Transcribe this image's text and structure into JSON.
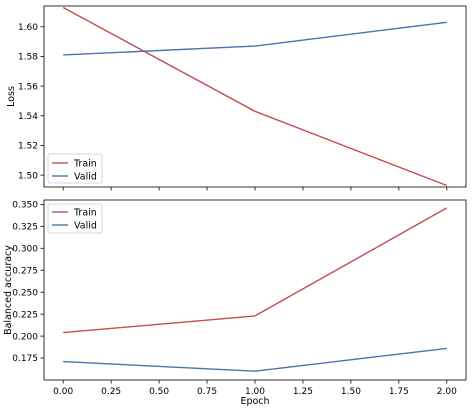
{
  "colors": {
    "train": "#c44e52",
    "valid": "#4c72b0"
  },
  "chart_data": [
    {
      "type": "line",
      "title": "",
      "xlabel": "",
      "ylabel": "Loss",
      "x": [
        0,
        1,
        2
      ],
      "series": [
        {
          "name": "Train",
          "values": [
            1.613,
            1.543,
            1.493
          ]
        },
        {
          "name": "Valid",
          "values": [
            1.581,
            1.587,
            1.603
          ]
        }
      ],
      "ylim": [
        1.492,
        1.614
      ],
      "xlim": [
        -0.1,
        2.1
      ],
      "yticks": [
        1.5,
        1.52,
        1.54,
        1.56,
        1.58,
        1.6
      ],
      "ytick_labels": [
        "1.50",
        "1.52",
        "1.54",
        "1.56",
        "1.58",
        "1.60"
      ],
      "xticks": [
        0,
        0.25,
        0.5,
        0.75,
        1,
        1.25,
        1.5,
        1.75,
        2
      ],
      "xtick_labels": [],
      "grid": false,
      "legend": "lower-left"
    },
    {
      "type": "line",
      "title": "",
      "xlabel": "Epoch",
      "ylabel": "Balanced accuracy",
      "x": [
        0,
        1,
        2
      ],
      "series": [
        {
          "name": "Train",
          "values": [
            0.204,
            0.223,
            0.346
          ]
        },
        {
          "name": "Valid",
          "values": [
            0.171,
            0.16,
            0.186
          ]
        }
      ],
      "ylim": [
        0.15,
        0.355
      ],
      "xlim": [
        -0.1,
        2.1
      ],
      "yticks": [
        0.175,
        0.2,
        0.225,
        0.25,
        0.275,
        0.3,
        0.325,
        0.35
      ],
      "ytick_labels": [
        "0.175",
        "0.200",
        "0.225",
        "0.250",
        "0.275",
        "0.300",
        "0.325",
        "0.350"
      ],
      "xticks": [
        0,
        0.25,
        0.5,
        0.75,
        1,
        1.25,
        1.5,
        1.75,
        2
      ],
      "xtick_labels": [
        "0.00",
        "0.25",
        "0.50",
        "0.75",
        "1.00",
        "1.25",
        "1.50",
        "1.75",
        "2.00"
      ],
      "grid": false,
      "legend": "upper-left"
    }
  ]
}
